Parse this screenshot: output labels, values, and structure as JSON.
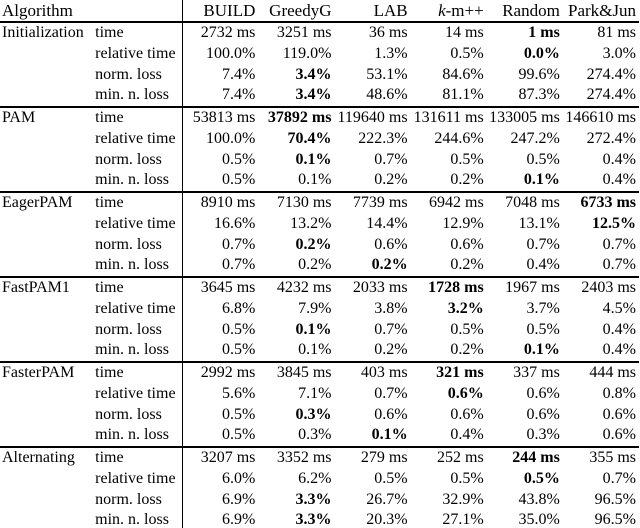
{
  "page": {
    "background_color": "#ffffff",
    "text_color": "#000000"
  },
  "table": {
    "header": {
      "algorithm_label": "Algorithm",
      "columns": [
        {
          "text": "BUILD"
        },
        {
          "text": "GreedyG"
        },
        {
          "text": "LAB"
        },
        {
          "text": "k-m++",
          "italic_first_char": true
        },
        {
          "text": "Random"
        },
        {
          "text": "Park&Jun"
        }
      ]
    },
    "metrics": [
      "time",
      "relative time",
      "norm. loss",
      "min. n. loss"
    ],
    "sections": [
      {
        "algorithm": "Initialization",
        "rows": [
          {
            "metric": "time",
            "values": [
              "2732 ms",
              "3251 ms",
              "36 ms",
              "14 ms",
              "1 ms",
              "81 ms"
            ],
            "bold": 4
          },
          {
            "metric": "relative time",
            "values": [
              "100.0%",
              "119.0%",
              "1.3%",
              "0.5%",
              "0.0%",
              "3.0%"
            ],
            "bold": 4
          },
          {
            "metric": "norm. loss",
            "values": [
              "7.4%",
              "3.4%",
              "53.1%",
              "84.6%",
              "99.6%",
              "274.4%"
            ],
            "bold": 1
          },
          {
            "metric": "min. n. loss",
            "values": [
              "7.4%",
              "3.4%",
              "48.6%",
              "81.1%",
              "87.3%",
              "274.4%"
            ],
            "bold": 1
          }
        ]
      },
      {
        "algorithm": "PAM",
        "rows": [
          {
            "metric": "time",
            "values": [
              "53813 ms",
              "37892 ms",
              "119640 ms",
              "131611 ms",
              "133005 ms",
              "146610 ms"
            ],
            "bold": 1
          },
          {
            "metric": "relative time",
            "values": [
              "100.0%",
              "70.4%",
              "222.3%",
              "244.6%",
              "247.2%",
              "272.4%"
            ],
            "bold": 1
          },
          {
            "metric": "norm. loss",
            "values": [
              "0.5%",
              "0.1%",
              "0.7%",
              "0.5%",
              "0.5%",
              "0.4%"
            ],
            "bold": 1
          },
          {
            "metric": "min. n. loss",
            "values": [
              "0.5%",
              "0.1%",
              "0.2%",
              "0.2%",
              "0.1%",
              "0.4%"
            ],
            "bold": 4
          }
        ]
      },
      {
        "algorithm": "EagerPAM",
        "rows": [
          {
            "metric": "time",
            "values": [
              "8910 ms",
              "7130 ms",
              "7739 ms",
              "6942 ms",
              "7048 ms",
              "6733 ms"
            ],
            "bold": 5
          },
          {
            "metric": "relative time",
            "values": [
              "16.6%",
              "13.2%",
              "14.4%",
              "12.9%",
              "13.1%",
              "12.5%"
            ],
            "bold": 5
          },
          {
            "metric": "norm. loss",
            "values": [
              "0.7%",
              "0.2%",
              "0.6%",
              "0.6%",
              "0.7%",
              "0.7%"
            ],
            "bold": 1
          },
          {
            "metric": "min. n. loss",
            "values": [
              "0.7%",
              "0.2%",
              "0.2%",
              "0.2%",
              "0.4%",
              "0.7%"
            ],
            "bold": 2
          }
        ]
      },
      {
        "algorithm": "FastPAM1",
        "rows": [
          {
            "metric": "time",
            "values": [
              "3645 ms",
              "4232 ms",
              "2033 ms",
              "1728 ms",
              "1967 ms",
              "2403 ms"
            ],
            "bold": 3
          },
          {
            "metric": "relative time",
            "values": [
              "6.8%",
              "7.9%",
              "3.8%",
              "3.2%",
              "3.7%",
              "4.5%"
            ],
            "bold": 3
          },
          {
            "metric": "norm. loss",
            "values": [
              "0.5%",
              "0.1%",
              "0.7%",
              "0.5%",
              "0.5%",
              "0.4%"
            ],
            "bold": 1
          },
          {
            "metric": "min. n. loss",
            "values": [
              "0.5%",
              "0.1%",
              "0.2%",
              "0.2%",
              "0.1%",
              "0.4%"
            ],
            "bold": 4
          }
        ]
      },
      {
        "algorithm": "FasterPAM",
        "rows": [
          {
            "metric": "time",
            "values": [
              "2992 ms",
              "3845 ms",
              "403 ms",
              "321 ms",
              "337 ms",
              "444 ms"
            ],
            "bold": 3
          },
          {
            "metric": "relative time",
            "values": [
              "5.6%",
              "7.1%",
              "0.7%",
              "0.6%",
              "0.6%",
              "0.8%"
            ],
            "bold": 3
          },
          {
            "metric": "norm. loss",
            "values": [
              "0.5%",
              "0.3%",
              "0.6%",
              "0.6%",
              "0.6%",
              "0.6%"
            ],
            "bold": 1
          },
          {
            "metric": "min. n. loss",
            "values": [
              "0.5%",
              "0.3%",
              "0.1%",
              "0.4%",
              "0.3%",
              "0.6%"
            ],
            "bold": 2
          }
        ]
      },
      {
        "algorithm": "Alternating",
        "rows": [
          {
            "metric": "time",
            "values": [
              "3207 ms",
              "3352 ms",
              "279 ms",
              "252 ms",
              "244 ms",
              "355 ms"
            ],
            "bold": 4
          },
          {
            "metric": "relative time",
            "values": [
              "6.0%",
              "6.2%",
              "0.5%",
              "0.5%",
              "0.5%",
              "0.7%"
            ],
            "bold": 4
          },
          {
            "metric": "norm. loss",
            "values": [
              "6.9%",
              "3.3%",
              "26.7%",
              "32.9%",
              "43.8%",
              "96.5%"
            ],
            "bold": 1
          },
          {
            "metric": "min. n. loss",
            "values": [
              "6.9%",
              "3.3%",
              "20.3%",
              "27.1%",
              "35.0%",
              "96.5%"
            ],
            "bold": 1
          }
        ]
      }
    ]
  }
}
